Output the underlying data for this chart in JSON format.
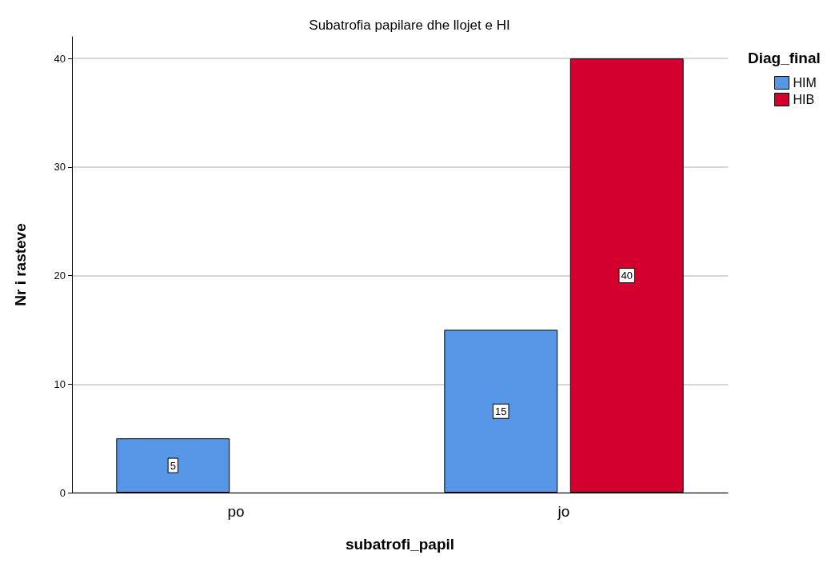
{
  "chart_data": {
    "type": "bar",
    "title": "Subatrofia papilare dhe llojet e HI",
    "xlabel": "subatrofi_papil",
    "ylabel": "Nr i rasteve",
    "legend_title": "Diag_final",
    "categories": [
      "po",
      "jo"
    ],
    "series": [
      {
        "name": "HIM",
        "color": "#5596e6",
        "values": [
          5,
          15
        ]
      },
      {
        "name": "HIB",
        "color": "#d3002f",
        "values": [
          null,
          40
        ]
      }
    ],
    "ylim": [
      0,
      42
    ],
    "yticks": [
      0,
      10,
      20,
      30,
      40
    ],
    "grid": "y",
    "legend": "top right",
    "data_labels": true
  }
}
